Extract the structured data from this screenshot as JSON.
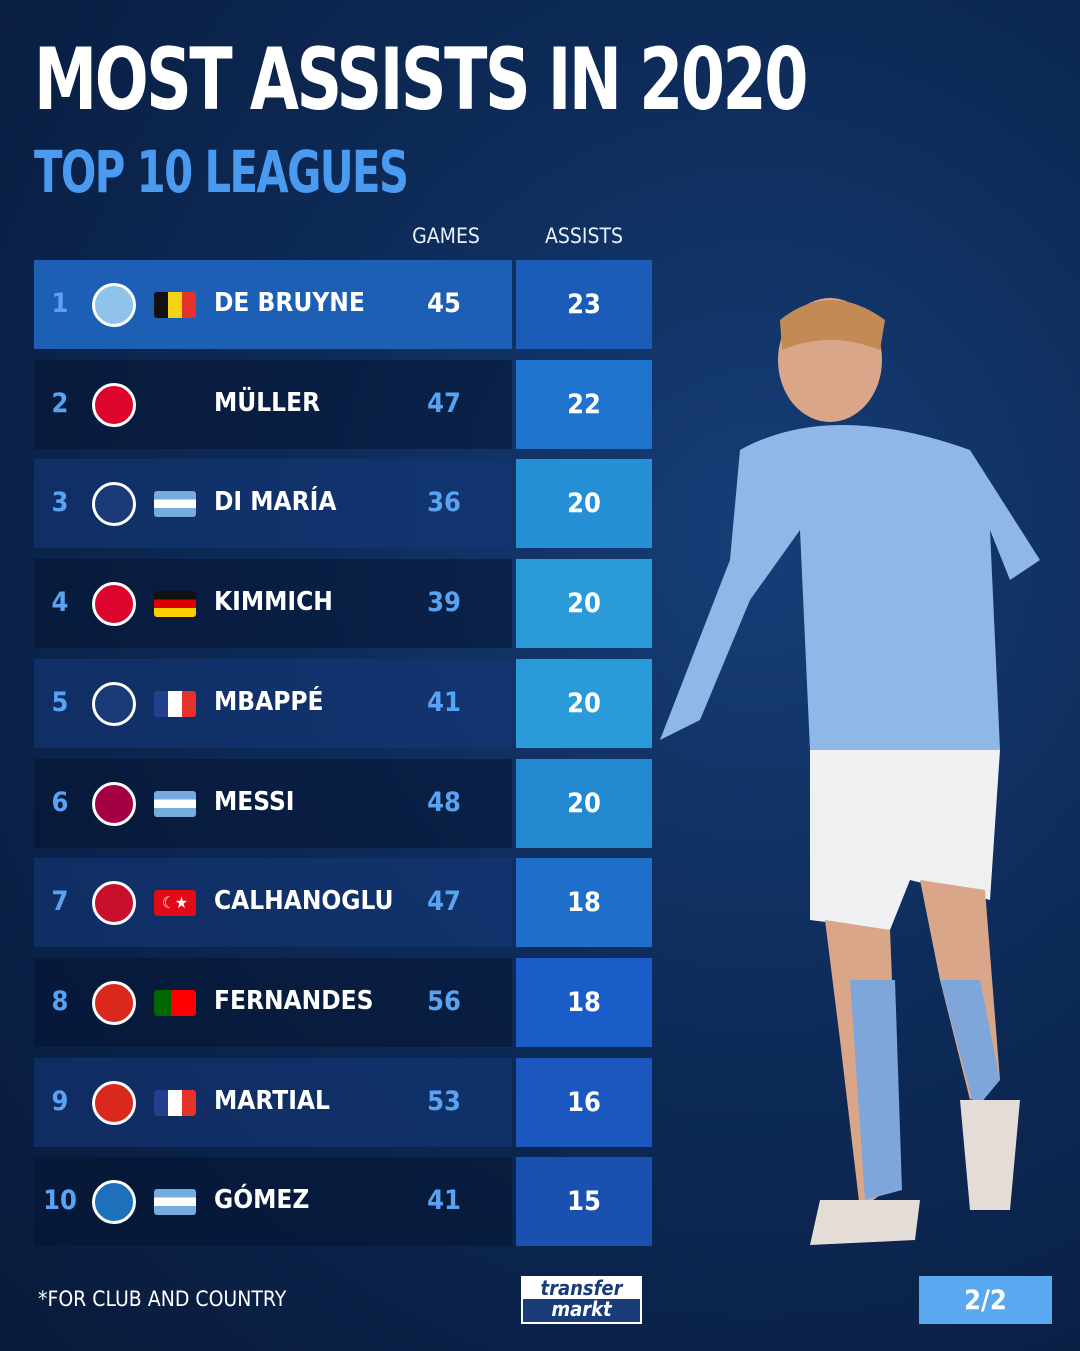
{
  "title": "MOST ASSISTS IN 2020",
  "subtitle": "TOP 10 LEAGUES",
  "footnote": "*FOR CLUB AND COUNTRY",
  "logo": {
    "line1": "transfer",
    "line2": "markt"
  },
  "page_indicator": "2/2",
  "colors": {
    "accent": "#4a9af0",
    "highlight_row": "#1d5fb5",
    "page_badge": "#5aa8f0"
  },
  "chart_data": {
    "type": "table",
    "title": "MOST ASSISTS IN 2020",
    "subtitle": "TOP 10 LEAGUES",
    "columns": [
      "GAMES",
      "ASSISTS"
    ],
    "rows": [
      {
        "rank": "1",
        "club": "manchester-city",
        "flag": "belgium",
        "player": "DE BRUYNE",
        "games": 45,
        "assists": 23
      },
      {
        "rank": "2",
        "club": "bayern-munich",
        "flag": "",
        "player": "MÜLLER",
        "games": 47,
        "assists": 22
      },
      {
        "rank": "3",
        "club": "psg",
        "flag": "argentina",
        "player": "DI MARÍA",
        "games": 36,
        "assists": 20
      },
      {
        "rank": "4",
        "club": "bayern-munich",
        "flag": "germany",
        "player": "KIMMICH",
        "games": 39,
        "assists": 20
      },
      {
        "rank": "5",
        "club": "psg",
        "flag": "france",
        "player": "MBAPPÉ",
        "games": 41,
        "assists": 20
      },
      {
        "rank": "6",
        "club": "barcelona",
        "flag": "argentina",
        "player": "MESSI",
        "games": 48,
        "assists": 20
      },
      {
        "rank": "7",
        "club": "ac-milan",
        "flag": "turkey",
        "player": "CALHANOGLU",
        "games": 47,
        "assists": 18
      },
      {
        "rank": "8",
        "club": "sporting-manchester-united",
        "flag": "portugal",
        "player": "FERNANDES",
        "games": 56,
        "assists": 18
      },
      {
        "rank": "9",
        "club": "manchester-united",
        "flag": "france",
        "player": "MARTIAL",
        "games": 53,
        "assists": 16
      },
      {
        "rank": "10",
        "club": "atalanta",
        "flag": "argentina",
        "player": "GÓMEZ",
        "games": 41,
        "assists": 15
      }
    ]
  }
}
